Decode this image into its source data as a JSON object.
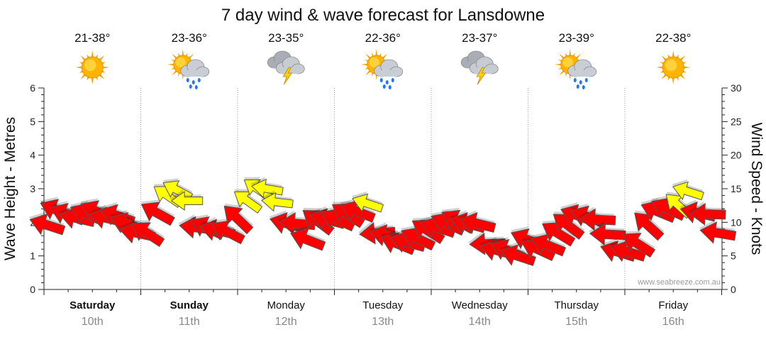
{
  "chart_data": {
    "type": "line",
    "title": "7 day wind & wave forecast for Lansdowne",
    "ylabel_left": "Wave Height - Metres",
    "ylabel_right": "Wind Speed - Knots",
    "ylim_left": [
      0,
      6
    ],
    "ylim_right": [
      0,
      30
    ],
    "yticks_left": [
      "0",
      "1",
      "2",
      "3",
      "4",
      "5",
      "6"
    ],
    "yticks_right": [
      "0",
      "5",
      "10",
      "15",
      "20",
      "25",
      "30"
    ],
    "grid": "dotted vertical day separators",
    "days": [
      {
        "name": "Saturday",
        "date": "10th",
        "temp": "21-38°",
        "icon": "sun-icon",
        "bold": true
      },
      {
        "name": "Sunday",
        "date": "11th",
        "temp": "23-36°",
        "icon": "sun-cloud-rain-icon",
        "bold": true
      },
      {
        "name": "Monday",
        "date": "12th",
        "temp": "23-35°",
        "icon": "cloud-lightning-icon",
        "bold": false
      },
      {
        "name": "Tuesday",
        "date": "13th",
        "temp": "22-36°",
        "icon": "sun-cloud-rain-icon",
        "bold": false
      },
      {
        "name": "Wednesday",
        "date": "14th",
        "temp": "23-37°",
        "icon": "cloud-lightning-icon",
        "bold": false
      },
      {
        "name": "Thursday",
        "date": "15th",
        "temp": "23-39°",
        "icon": "sun-cloud-rain-icon",
        "bold": false
      },
      {
        "name": "Friday",
        "date": "16th",
        "temp": "22-38°",
        "icon": "sun-icon",
        "bold": false
      }
    ],
    "series": [
      {
        "kind": "wind",
        "values": [
          9.6,
          11.8,
          11.2,
          10.6,
          11.2,
          11.6,
          10.6,
          11.0,
          9.8,
          8.4,
          8.4,
          11.4,
          14.0,
          14.8,
          13.2,
          9.2,
          9.2,
          8.8,
          8.6,
          10.6,
          13.2,
          15.0,
          15.0,
          13.0,
          9.8,
          9.8,
          7.4,
          10.2,
          10.4,
          10.4,
          11.2,
          11.6,
          12.8,
          8.4,
          8.0,
          6.8,
          7.0,
          7.6,
          8.8,
          9.2,
          9.8,
          10.2,
          9.8,
          9.8,
          6.8,
          5.8,
          5.8,
          5.0,
          7.4,
          6.0,
          6.6,
          8.4,
          9.6,
          11.0,
          10.8,
          10.4,
          8.2,
          5.6,
          5.6,
          6.8,
          9.6,
          11.6,
          12.0,
          12.6,
          14.6,
          11.4,
          11.2,
          8.4
        ]
      }
    ],
    "watermark": "www.seabreeze.com.au",
    "colors": {
      "strong_wind": "#ff0000",
      "light_wind": "#ffff00",
      "outline": "#555555",
      "grid": "#999999"
    }
  }
}
